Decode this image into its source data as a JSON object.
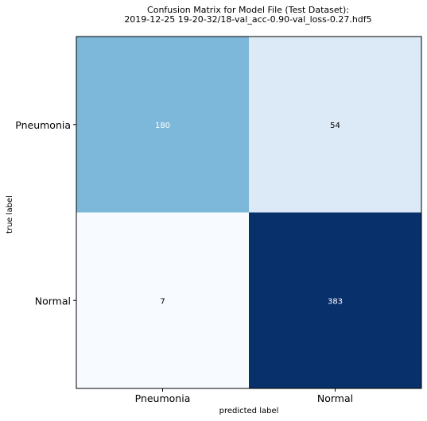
{
  "chart_data": {
    "type": "heatmap",
    "title": [
      "Confusion Matrix for Model File (Test Dataset):",
      "2019-12-25 19-20-32/18-val_acc-0.90-val_loss-0.27.hdf5"
    ],
    "xlabel": "predicted label",
    "ylabel": "true label",
    "x_categories": [
      "Pneumonia",
      "Normal"
    ],
    "y_categories": [
      "Pneumonia",
      "Normal"
    ],
    "matrix": [
      [
        180,
        54
      ],
      [
        7,
        383
      ]
    ],
    "colormap": "Blues",
    "grid": false,
    "colors": {
      "cell_180": "#7db8da",
      "cell_54": "#dce9f6",
      "cell_7": "#f7fbff",
      "cell_383": "#08306b",
      "text_on_dark": "#ffffff",
      "text_on_light": "#000000"
    }
  }
}
